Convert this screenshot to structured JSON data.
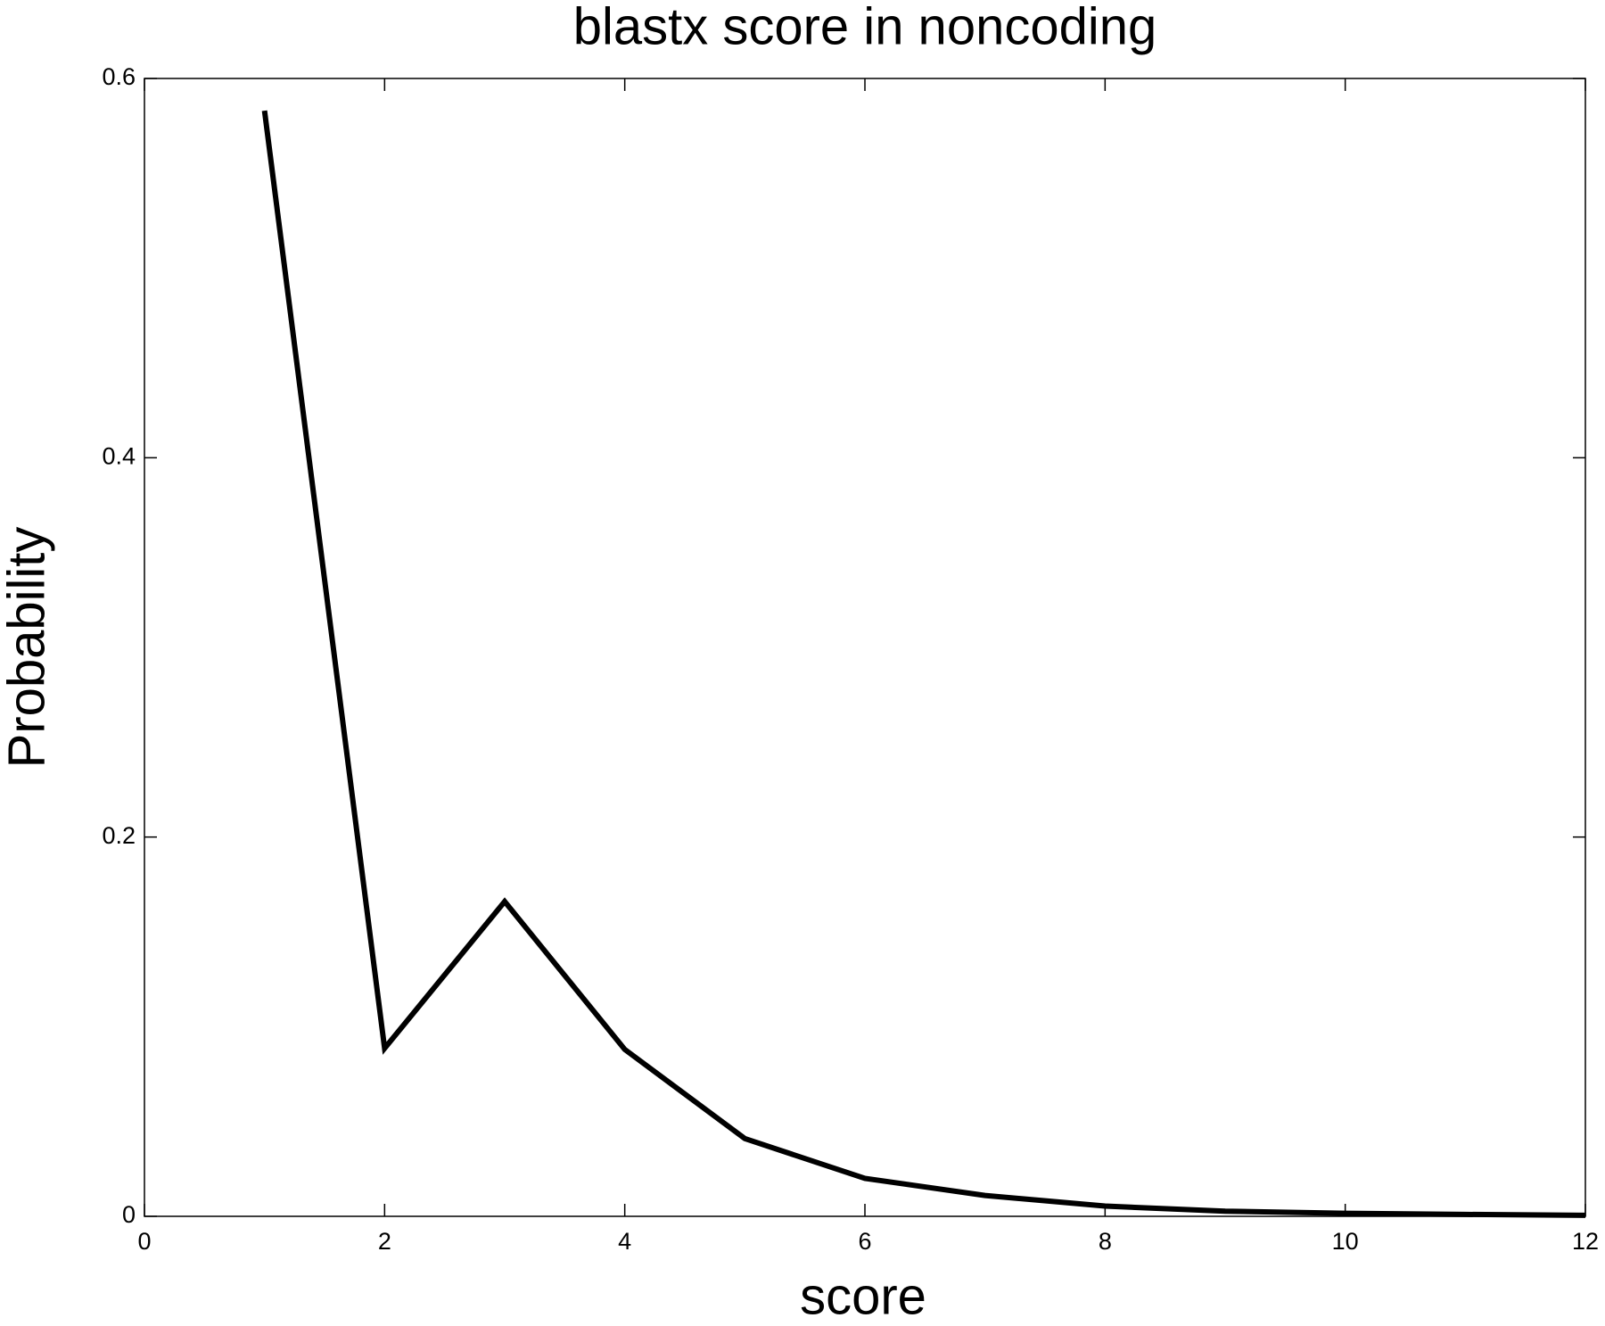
{
  "chart_data": {
    "type": "line",
    "title": "blastx score in noncoding",
    "x_label": "score",
    "y_label": "Probability",
    "x": [
      1,
      2,
      3,
      4,
      5,
      6,
      7,
      8,
      9,
      10,
      11,
      12
    ],
    "values": [
      0.583,
      0.0886,
      0.166,
      0.088,
      0.041,
      0.02,
      0.011,
      0.0054,
      0.0027,
      0.0016,
      0.001,
      0.0005
    ],
    "color": "#000000",
    "xlim": [
      0,
      12
    ],
    "xticks": [
      0,
      2,
      4,
      6,
      8,
      10,
      12
    ],
    "ylim": [
      0,
      0.6
    ],
    "yticks": [
      0,
      0.2,
      0.4,
      0.6
    ],
    "grid": false
  }
}
